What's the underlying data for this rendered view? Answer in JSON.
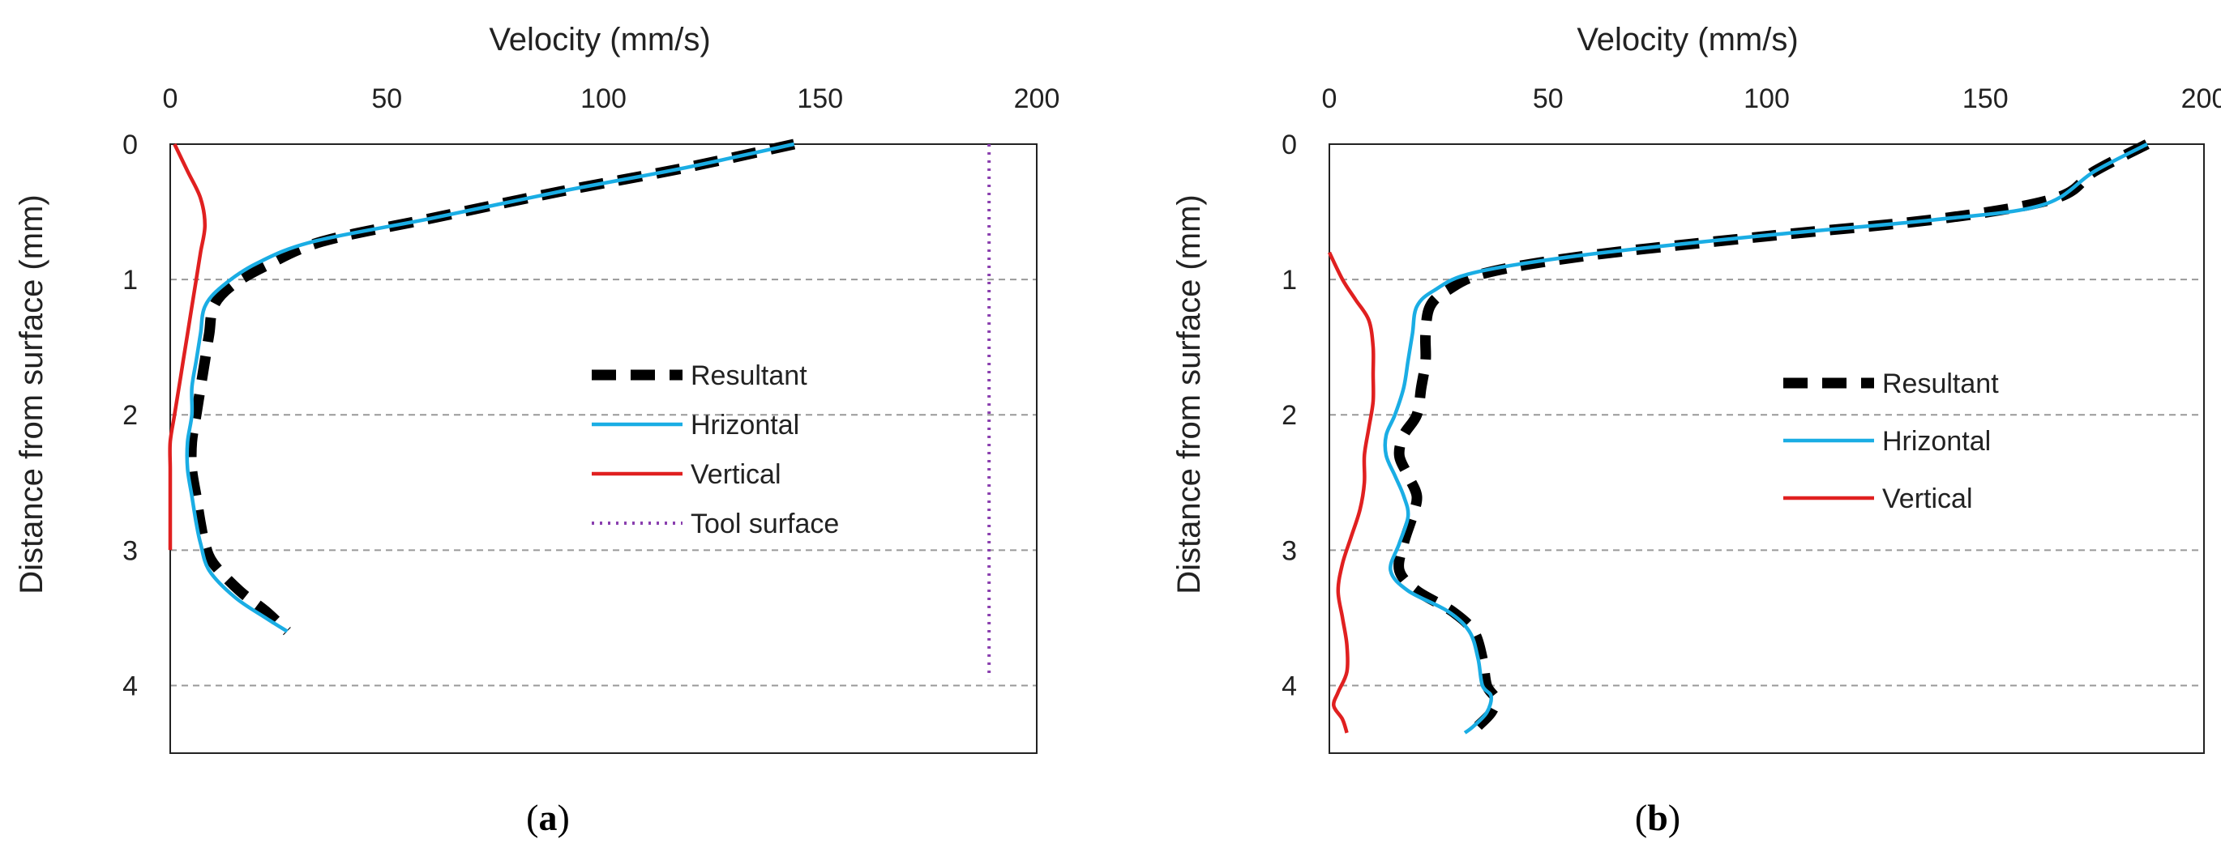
{
  "colors": {
    "resultant": "#000000",
    "horizontal": "#1AADE4",
    "vertical": "#E02020",
    "tool_surface": "#8A3FAF",
    "grid": "#999999"
  },
  "chart_data": [
    {
      "type": "line",
      "panel_label": "a",
      "title": "",
      "xlabel": "Velocity (mm/s)",
      "ylabel": "Distance from surface (mm)",
      "xlim": [
        0,
        200
      ],
      "ylim": [
        0,
        4.5
      ],
      "y_inverted": true,
      "x_axis_position": "top",
      "xticks": [
        "0",
        "50",
        "100",
        "150",
        "200"
      ],
      "yticks": [
        "0",
        "1",
        "2",
        "3",
        "4"
      ],
      "grid": "horizontal dashed",
      "legend_placement": "center-right",
      "series": [
        {
          "name": "Resultant",
          "style": "dashed-thick",
          "color_key": "resultant",
          "points": [
            [
              144,
              0
            ],
            [
              118,
              0.18
            ],
            [
              90,
              0.35
            ],
            [
              60,
              0.55
            ],
            [
              35,
              0.72
            ],
            [
              22,
              0.9
            ],
            [
              14,
              1.05
            ],
            [
              10,
              1.2
            ],
            [
              9,
              1.4
            ],
            [
              8,
              1.6
            ],
            [
              7,
              1.8
            ],
            [
              6,
              2.0
            ],
            [
              5,
              2.2
            ],
            [
              5,
              2.4
            ],
            [
              6,
              2.6
            ],
            [
              7,
              2.8
            ],
            [
              8,
              2.95
            ],
            [
              10,
              3.1
            ],
            [
              16,
              3.3
            ],
            [
              22,
              3.45
            ],
            [
              27,
              3.6
            ]
          ]
        },
        {
          "name": "Hrizontal",
          "style": "solid",
          "color_key": "horizontal",
          "points": [
            [
              144,
              0
            ],
            [
              118,
              0.18
            ],
            [
              90,
              0.35
            ],
            [
              60,
              0.55
            ],
            [
              33,
              0.72
            ],
            [
              20,
              0.88
            ],
            [
              12,
              1.05
            ],
            [
              8,
              1.2
            ],
            [
              7,
              1.4
            ],
            [
              6,
              1.6
            ],
            [
              5,
              1.8
            ],
            [
              5,
              2.0
            ],
            [
              4,
              2.2
            ],
            [
              4,
              2.4
            ],
            [
              5,
              2.6
            ],
            [
              6,
              2.8
            ],
            [
              7,
              2.95
            ],
            [
              9,
              3.15
            ],
            [
              15,
              3.35
            ],
            [
              22,
              3.5
            ],
            [
              27,
              3.6
            ]
          ]
        },
        {
          "name": "Vertical",
          "style": "solid",
          "color_key": "vertical",
          "points": [
            [
              1,
              0
            ],
            [
              4,
              0.2
            ],
            [
              7,
              0.4
            ],
            [
              8,
              0.6
            ],
            [
              7,
              0.8
            ],
            [
              6,
              1.0
            ],
            [
              5,
              1.2
            ],
            [
              4,
              1.4
            ],
            [
              3,
              1.6
            ],
            [
              2,
              1.8
            ],
            [
              1,
              2.0
            ],
            [
              0,
              2.2
            ],
            [
              0,
              2.4
            ],
            [
              0,
              2.6
            ],
            [
              0,
              2.8
            ],
            [
              0,
              3.0
            ]
          ]
        },
        {
          "name": "Tool surface",
          "style": "dotted",
          "color_key": "tool_surface",
          "points": [
            [
              189,
              0
            ],
            [
              189,
              3.95
            ]
          ]
        }
      ]
    },
    {
      "type": "line",
      "panel_label": "b",
      "title": "",
      "xlabel": "Velocity (mm/s)",
      "ylabel": "Distance from surface (mm)",
      "xlim": [
        0,
        200
      ],
      "ylim": [
        0,
        4.5
      ],
      "y_inverted": true,
      "x_axis_position": "top",
      "xticks": [
        "0",
        "50",
        "100",
        "150",
        "200"
      ],
      "yticks": [
        "0",
        "1",
        "2",
        "3",
        "4"
      ],
      "grid": "horizontal dashed",
      "legend_placement": "center-right",
      "series": [
        {
          "name": "Resultant",
          "style": "dashed-thick",
          "color_key": "resultant",
          "points": [
            [
              187,
              0
            ],
            [
              175,
              0.2
            ],
            [
              166,
              0.4
            ],
            [
              140,
              0.55
            ],
            [
              100,
              0.68
            ],
            [
              60,
              0.82
            ],
            [
              36,
              0.95
            ],
            [
              27,
              1.08
            ],
            [
              23,
              1.2
            ],
            [
              22,
              1.4
            ],
            [
              22,
              1.6
            ],
            [
              21,
              1.8
            ],
            [
              20,
              2.0
            ],
            [
              17,
              2.15
            ],
            [
              16,
              2.3
            ],
            [
              18,
              2.45
            ],
            [
              20,
              2.6
            ],
            [
              19,
              2.75
            ],
            [
              17,
              2.95
            ],
            [
              16,
              3.15
            ],
            [
              20,
              3.3
            ],
            [
              28,
              3.45
            ],
            [
              33,
              3.6
            ],
            [
              35,
              3.8
            ],
            [
              36,
              4.0
            ],
            [
              38,
              4.1
            ],
            [
              37,
              4.2
            ],
            [
              34,
              4.3
            ]
          ]
        },
        {
          "name": "Hrizontal",
          "style": "solid",
          "color_key": "horizontal",
          "points": [
            [
              187,
              0
            ],
            [
              175,
              0.2
            ],
            [
              163,
              0.45
            ],
            [
              138,
              0.56
            ],
            [
              98,
              0.68
            ],
            [
              58,
              0.82
            ],
            [
              33,
              0.95
            ],
            [
              24,
              1.08
            ],
            [
              20,
              1.2
            ],
            [
              19,
              1.4
            ],
            [
              18,
              1.6
            ],
            [
              17,
              1.8
            ],
            [
              15,
              2.0
            ],
            [
              13,
              2.15
            ],
            [
              13,
              2.3
            ],
            [
              15,
              2.45
            ],
            [
              17,
              2.6
            ],
            [
              18,
              2.75
            ],
            [
              16,
              2.95
            ],
            [
              14,
              3.15
            ],
            [
              18,
              3.3
            ],
            [
              27,
              3.45
            ],
            [
              32,
              3.6
            ],
            [
              34,
              3.8
            ],
            [
              35,
              4.0
            ],
            [
              37,
              4.08
            ],
            [
              36,
              4.2
            ],
            [
              33,
              4.3
            ],
            [
              31,
              4.35
            ]
          ]
        },
        {
          "name": "Vertical",
          "style": "solid",
          "color_key": "vertical",
          "points": [
            [
              0,
              0.8
            ],
            [
              3,
              1.0
            ],
            [
              6,
              1.15
            ],
            [
              9,
              1.3
            ],
            [
              10,
              1.5
            ],
            [
              10,
              1.7
            ],
            [
              10,
              1.9
            ],
            [
              9,
              2.1
            ],
            [
              8,
              2.3
            ],
            [
              8,
              2.5
            ],
            [
              7,
              2.7
            ],
            [
              5,
              2.9
            ],
            [
              3,
              3.1
            ],
            [
              2,
              3.3
            ],
            [
              3,
              3.5
            ],
            [
              4,
              3.7
            ],
            [
              4,
              3.9
            ],
            [
              2,
              4.05
            ],
            [
              1,
              4.15
            ],
            [
              3,
              4.25
            ],
            [
              4,
              4.35
            ]
          ]
        }
      ]
    }
  ]
}
